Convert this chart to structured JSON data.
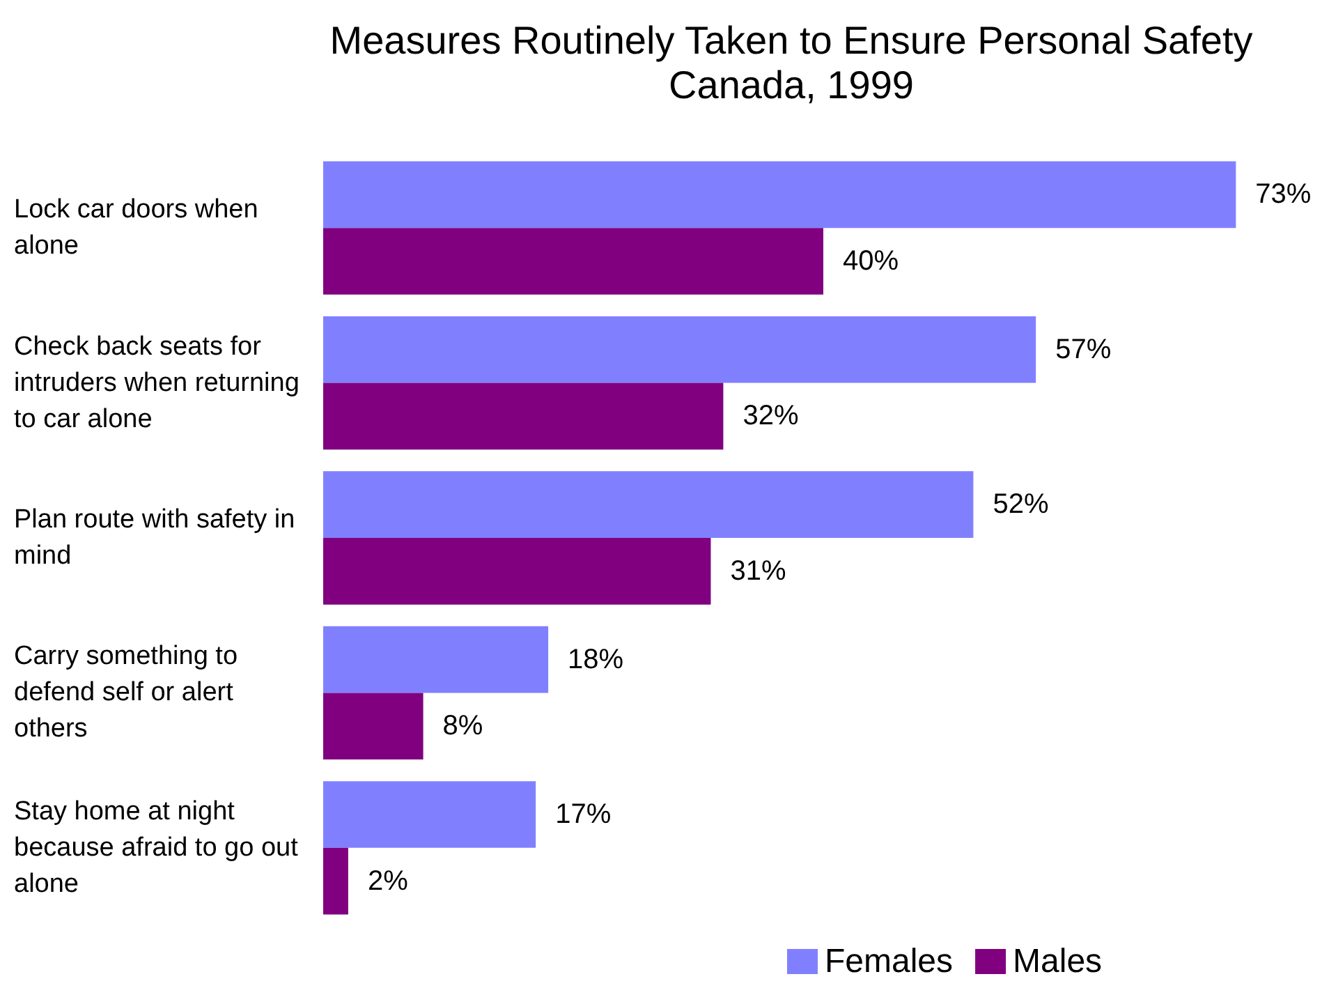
{
  "chart_data": {
    "type": "bar",
    "orientation": "horizontal",
    "title": "Measures Routinely Taken to Ensure Personal Safety",
    "subtitle": "Canada, 1999",
    "categories": [
      "Lock car doors when alone",
      "Check back seats for intruders when returning to car alone",
      "Plan route with safety in mind",
      "Carry something to defend self or alert others",
      "Stay home at night because afraid to go out alone"
    ],
    "series": [
      {
        "name": "Females",
        "color": "#8080ff",
        "values": [
          73,
          57,
          52,
          18,
          17
        ],
        "value_labels": [
          "73%",
          "57%",
          "52%",
          "18%",
          "17%"
        ]
      },
      {
        "name": "Males",
        "color": "#800080",
        "values": [
          40,
          32,
          31,
          8,
          2
        ],
        "value_labels": [
          "40%",
          "32%",
          "31%",
          "8%",
          "2%"
        ]
      }
    ],
    "legend": "bottom"
  }
}
